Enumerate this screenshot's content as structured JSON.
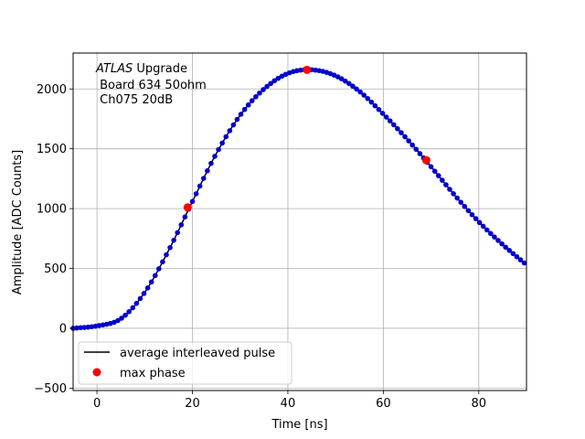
{
  "chart_data": {
    "type": "line",
    "title": "",
    "xlabel": "Time [ns]",
    "ylabel": "Amplitude [ADC Counts]",
    "xlim": [
      -5,
      90
    ],
    "ylim": [
      -520,
      2300
    ],
    "x_ticks": [
      0,
      20,
      40,
      60,
      80
    ],
    "y_ticks": [
      -500,
      0,
      500,
      1000,
      1500,
      2000
    ],
    "grid": true,
    "annotation": {
      "italic": "ATLAS",
      "rest": " Upgrade",
      "line2": " Board 634 50ohm",
      "line3": " Ch075 20dB"
    },
    "legend": {
      "position": "lower-left",
      "entries": [
        "average interleaved pulse",
        "max phase"
      ]
    },
    "series": [
      {
        "name": "average interleaved pulse",
        "style": "line-with-markers",
        "line_color": "#000000",
        "marker_color": "#0000cc",
        "x": [
          -5,
          0,
          5,
          10,
          15,
          20,
          25,
          30,
          35,
          40,
          45,
          50,
          55,
          60,
          65,
          70,
          75,
          80,
          85,
          90
        ],
        "y": [
          0,
          20,
          80,
          300,
          650,
          1060,
          1460,
          1780,
          2000,
          2130,
          2160,
          2110,
          1980,
          1790,
          1580,
          1350,
          1110,
          890,
          700,
          530
        ]
      },
      {
        "name": "max phase",
        "style": "markers",
        "marker_color": "#ff0000",
        "x": [
          19,
          44,
          69
        ],
        "y": [
          1010,
          2160,
          1405
        ]
      }
    ]
  }
}
